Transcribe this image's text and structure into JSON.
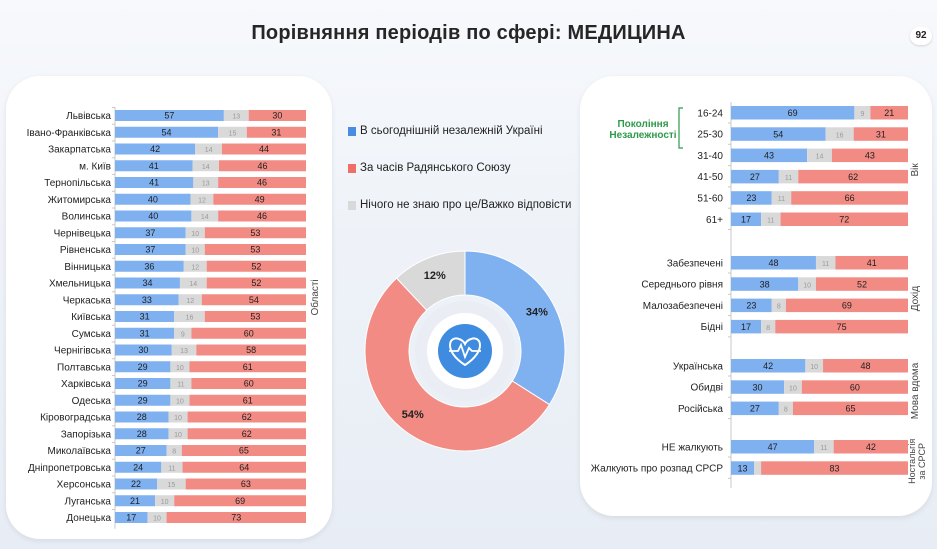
{
  "header": {
    "title": "Порівняння періодів по сфері: МЕДИЦИНА",
    "page_number": "92"
  },
  "colors": {
    "independent": "#7fb0f0",
    "soviet": "#f28b84",
    "dont_know": "#d9d9d9",
    "generation_label": "#2e9a4a"
  },
  "legend": [
    {
      "label": "В сьогоднішній незалежній Україні",
      "color": "#4a8de0"
    },
    {
      "label": "За часів Радянського Союзу",
      "color": "#ef6f66"
    },
    {
      "label": "Нічого не знаю про це/Важко відповісти",
      "color": "#d9d9d9"
    }
  ],
  "chart_data": [
    {
      "type": "bar",
      "subtype": "stacked-horizontal-100",
      "group_label": "Області",
      "series_order": [
        "independent",
        "dont_know",
        "soviet"
      ],
      "rows": [
        {
          "label": "Львівська",
          "independent": 57,
          "dont_know": 13,
          "soviet": 30
        },
        {
          "label": "Івано-Франківська",
          "independent": 54,
          "dont_know": 15,
          "soviet": 31
        },
        {
          "label": "Закарпатська",
          "independent": 42,
          "dont_know": 14,
          "soviet": 44
        },
        {
          "label": "м. Київ",
          "independent": 41,
          "dont_know": 14,
          "soviet": 46
        },
        {
          "label": "Тернопільська",
          "independent": 41,
          "dont_know": 13,
          "soviet": 46
        },
        {
          "label": "Житомирська",
          "independent": 40,
          "dont_know": 12,
          "soviet": 49
        },
        {
          "label": "Волинська",
          "independent": 40,
          "dont_know": 14,
          "soviet": 46
        },
        {
          "label": "Чернівецька",
          "independent": 37,
          "dont_know": 10,
          "soviet": 53
        },
        {
          "label": "Рівненська",
          "independent": 37,
          "dont_know": 10,
          "soviet": 53
        },
        {
          "label": "Вінницька",
          "independent": 36,
          "dont_know": 12,
          "soviet": 52
        },
        {
          "label": "Хмельницька",
          "independent": 34,
          "dont_know": 14,
          "soviet": 52
        },
        {
          "label": "Черкаська",
          "independent": 33,
          "dont_know": 12,
          "soviet": 54
        },
        {
          "label": "Київська",
          "independent": 31,
          "dont_know": 16,
          "soviet": 53
        },
        {
          "label": "Сумська",
          "independent": 31,
          "dont_know": 9,
          "soviet": 60
        },
        {
          "label": "Чернігівська",
          "independent": 30,
          "dont_know": 13,
          "soviet": 58
        },
        {
          "label": "Полтавська",
          "independent": 29,
          "dont_know": 10,
          "soviet": 61
        },
        {
          "label": "Харківська",
          "independent": 29,
          "dont_know": 11,
          "soviet": 60
        },
        {
          "label": "Одеська",
          "independent": 29,
          "dont_know": 10,
          "soviet": 61
        },
        {
          "label": "Кіровоградська",
          "independent": 28,
          "dont_know": 10,
          "soviet": 62
        },
        {
          "label": "Запорізька",
          "independent": 28,
          "dont_know": 10,
          "soviet": 62
        },
        {
          "label": "Миколаївська",
          "independent": 27,
          "dont_know": 8,
          "soviet": 65
        },
        {
          "label": "Дніпропетровська",
          "independent": 24,
          "dont_know": 11,
          "soviet": 64
        },
        {
          "label": "Херсонська",
          "independent": 22,
          "dont_know": 15,
          "soviet": 63
        },
        {
          "label": "Луганська",
          "independent": 21,
          "dont_know": 10,
          "soviet": 69
        },
        {
          "label": "Донецька",
          "independent": 17,
          "dont_know": 10,
          "soviet": 73
        }
      ]
    },
    {
      "type": "pie",
      "subtype": "donut",
      "slices": [
        {
          "key": "independent",
          "value": 34,
          "label": "34%"
        },
        {
          "key": "soviet",
          "value": 54,
          "label": "54%"
        },
        {
          "key": "dont_know",
          "value": 12,
          "label": "12%"
        }
      ],
      "center_icon": "heart-pulse-icon"
    },
    {
      "type": "bar",
      "subtype": "stacked-horizontal-100",
      "series_order": [
        "independent",
        "dont_know",
        "soviet"
      ],
      "groups": [
        {
          "label": "Вік",
          "callout": "Покоління Незалежності",
          "rows": [
            {
              "label": "16-24",
              "independent": 69,
              "dont_know": 9,
              "soviet": 21
            },
            {
              "label": "25-30",
              "independent": 54,
              "dont_know": 16,
              "soviet": 31
            },
            {
              "label": "31-40",
              "independent": 43,
              "dont_know": 14,
              "soviet": 43
            },
            {
              "label": "41-50",
              "independent": 27,
              "dont_know": 11,
              "soviet": 62
            },
            {
              "label": "51-60",
              "independent": 23,
              "dont_know": 11,
              "soviet": 66
            },
            {
              "label": "61+",
              "independent": 17,
              "dont_know": 11,
              "soviet": 72
            }
          ]
        },
        {
          "label": "Дохід",
          "rows": [
            {
              "label": "Забезпечені",
              "independent": 48,
              "dont_know": 11,
              "soviet": 41
            },
            {
              "label": "Середнього рівня",
              "independent": 38,
              "dont_know": 10,
              "soviet": 52
            },
            {
              "label": "Малозабезпечені",
              "independent": 23,
              "dont_know": 8,
              "soviet": 69
            },
            {
              "label": "Бідні",
              "independent": 17,
              "dont_know": 8,
              "soviet": 75
            }
          ]
        },
        {
          "label": "Мова вдома",
          "rows": [
            {
              "label": "Українська",
              "independent": 42,
              "dont_know": 10,
              "soviet": 48
            },
            {
              "label": "Обидві",
              "independent": 30,
              "dont_know": 10,
              "soviet": 60
            },
            {
              "label": "Російська",
              "independent": 27,
              "dont_know": 8,
              "soviet": 65
            }
          ]
        },
        {
          "label": "Ностальгія за СРСР",
          "rows": [
            {
              "label": "НЕ жалкують",
              "independent": 47,
              "dont_know": 11,
              "soviet": 42
            },
            {
              "label": "Жалкують про розпад СРСР",
              "independent": 13,
              "dont_know": 4,
              "soviet": 83
            }
          ]
        }
      ]
    }
  ]
}
